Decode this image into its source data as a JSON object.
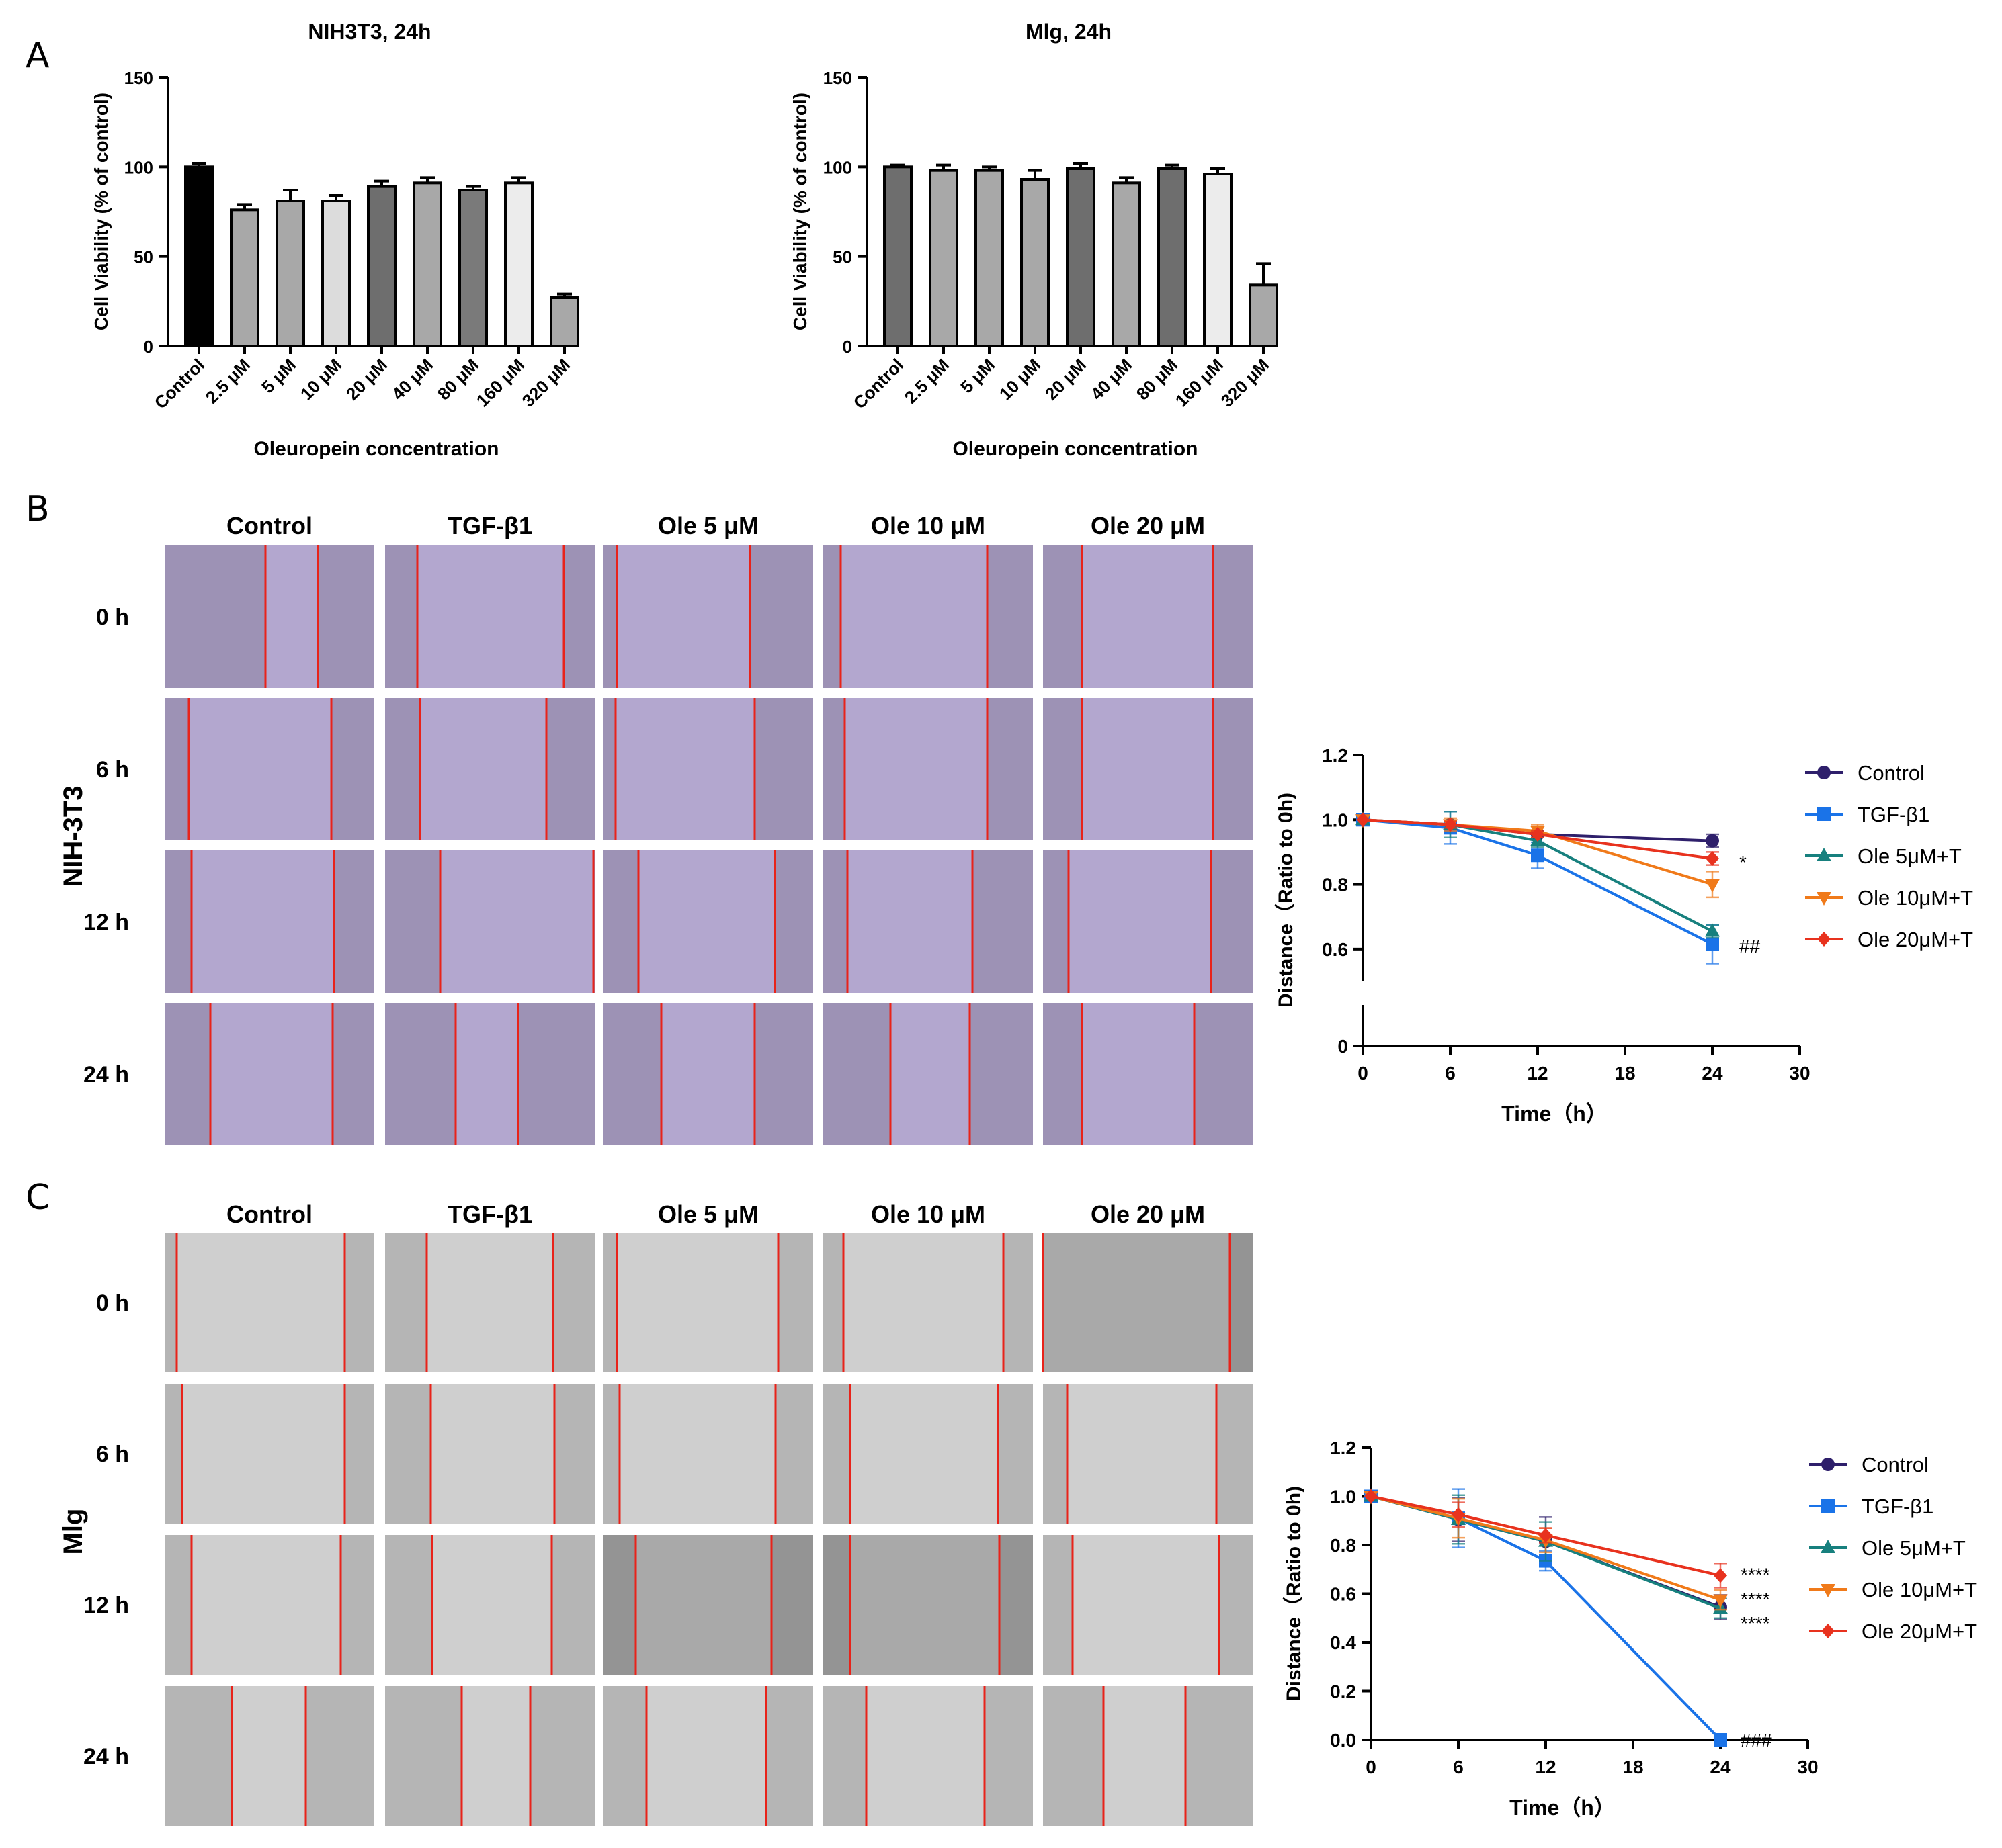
{
  "panel_letters": {
    "a": "A",
    "b": "B",
    "c": "C"
  },
  "panel_a": {
    "ylabel": "Cell Viability (% of control)",
    "xlabel": "Oleuropein concentration",
    "yticks": [
      "0",
      "50",
      "100",
      "150"
    ]
  },
  "panel_b": {
    "cell_line": "NIH-3T3",
    "columns": [
      "Control",
      "TGF-β1",
      "Ole 5 μM",
      "Ole 10 μM",
      "Ole 20 μM"
    ],
    "rows": [
      "0 h",
      "6 h",
      "12 h",
      "24 h"
    ]
  },
  "panel_c": {
    "cell_line": "Mlg",
    "columns": [
      "Control",
      "TGF-β1",
      "Ole 5 μM",
      "Ole 10 μM",
      "Ole 20 μM"
    ],
    "rows": [
      "0 h",
      "6 h",
      "12 h",
      "24 h"
    ]
  },
  "colors": {
    "control": "#2e1f6b",
    "tgf": "#1a73e8",
    "ole5": "#17807e",
    "ole10": "#f07a1a",
    "ole20": "#e8321e",
    "scratch_line": "#e8231a",
    "nih_tint": "#b3a7cf",
    "mlg_tint": "#cfcfcf"
  },
  "chart_data": [
    {
      "type": "bar",
      "title": "NIH3T3, 24h",
      "xlabel": "Oleuropein concentration",
      "ylabel": "Cell Viability (% of control)",
      "categories": [
        "Control",
        "2.5 μM",
        "5 μM",
        "10 μM",
        "20 μM",
        "40 μM",
        "80 μM",
        "160 μM",
        "320 μM"
      ],
      "values": [
        100,
        76,
        81,
        81,
        89,
        91,
        87,
        91,
        27
      ],
      "errors": [
        2,
        3,
        6,
        3,
        3,
        3,
        2,
        3,
        2
      ],
      "fills": [
        "#000000",
        "#a8a8a8",
        "#a8a8a8",
        "#dcdcdc",
        "#6e6e6e",
        "#a8a8a8",
        "#7a7a7a",
        "#ececec",
        "#a8a8a8"
      ],
      "ylim": [
        0,
        150
      ],
      "yticks": [
        0,
        50,
        100,
        150
      ]
    },
    {
      "type": "bar",
      "title": "Mlg, 24h",
      "xlabel": "Oleuropein concentration",
      "ylabel": "Cell Viability (% of control)",
      "categories": [
        "Control",
        "2.5 μM",
        "5 μM",
        "10 μM",
        "20 μM",
        "40 μM",
        "80 μM",
        "160 μM",
        "320 μM"
      ],
      "values": [
        100,
        98,
        98,
        93,
        99,
        91,
        99,
        96,
        34
      ],
      "errors": [
        1,
        3,
        2,
        5,
        3,
        3,
        2,
        3,
        12
      ],
      "fills": [
        "#6e6e6e",
        "#a8a8a8",
        "#a8a8a8",
        "#a8a8a8",
        "#6e6e6e",
        "#a8a8a8",
        "#6e6e6e",
        "#ececec",
        "#a8a8a8"
      ],
      "ylim": [
        0,
        150
      ],
      "yticks": [
        0,
        50,
        100,
        150
      ]
    },
    {
      "type": "line",
      "xlabel": "Time（h）",
      "ylabel": "Distance（Ratio to 0h)",
      "x": [
        0,
        6,
        12,
        24
      ],
      "xticks": [
        0,
        6,
        12,
        18,
        24,
        30
      ],
      "yticks": [
        0,
        0.6,
        0.8,
        1.0,
        1.2
      ],
      "ytick_labels": [
        "0",
        "0.6",
        "0.8",
        "1.0",
        "1.2"
      ],
      "axis_break": [
        0.05,
        0.5
      ],
      "series": [
        {
          "name": "Control",
          "marker": "circle",
          "values": [
            1.0,
            0.985,
            0.955,
            0.935
          ],
          "errors": [
            0,
            0.01,
            0.01,
            0.02
          ]
        },
        {
          "name": "TGF-β1",
          "marker": "square",
          "values": [
            1.0,
            0.975,
            0.89,
            0.615
          ],
          "errors": [
            0,
            0.05,
            0.04,
            0.06
          ]
        },
        {
          "name": "Ole 5μM+T",
          "marker": "triangle-up",
          "values": [
            1.0,
            0.985,
            0.935,
            0.655
          ],
          "errors": [
            0,
            0.04,
            0.02,
            0.02
          ]
        },
        {
          "name": "Ole 10μM+T",
          "marker": "triangle-down",
          "values": [
            1.0,
            0.985,
            0.965,
            0.8
          ],
          "errors": [
            0,
            0.02,
            0.02,
            0.04
          ]
        },
        {
          "name": "Ole 20μM+T",
          "marker": "diamond",
          "values": [
            1.0,
            0.985,
            0.955,
            0.88
          ],
          "errors": [
            0,
            0.01,
            0.01,
            0.02
          ]
        }
      ],
      "annotations": [
        {
          "text": "*",
          "x": 24,
          "y": 0.87
        },
        {
          "text": "##",
          "x": 24,
          "y": 0.61
        }
      ]
    },
    {
      "type": "line",
      "xlabel": "Time（h）",
      "ylabel": "Distance（Ratio to 0h)",
      "x": [
        0,
        6,
        12,
        24
      ],
      "xticks": [
        0,
        6,
        12,
        18,
        24,
        30
      ],
      "yticks": [
        0,
        0.2,
        0.4,
        0.6,
        0.8,
        1.0,
        1.2
      ],
      "ytick_labels": [
        "0.0",
        "0.2",
        "0.4",
        "0.6",
        "0.8",
        "1.0",
        "1.2"
      ],
      "series": [
        {
          "name": "Control",
          "marker": "circle",
          "values": [
            1.0,
            0.905,
            0.815,
            0.545
          ],
          "errors": [
            0,
            0.09,
            0.1,
            0.05
          ]
        },
        {
          "name": "TGF-β1",
          "marker": "square",
          "values": [
            1.0,
            0.91,
            0.735,
            0.0
          ],
          "errors": [
            0,
            0.12,
            0.04,
            0.01
          ]
        },
        {
          "name": "Ole 5μM+T",
          "marker": "triangle-up",
          "values": [
            1.0,
            0.905,
            0.815,
            0.54
          ],
          "errors": [
            0,
            0.1,
            0.08,
            0.04
          ]
        },
        {
          "name": "Ole 10μM+T",
          "marker": "triangle-down",
          "values": [
            1.0,
            0.91,
            0.82,
            0.575
          ],
          "errors": [
            0,
            0.08,
            0.05,
            0.04
          ]
        },
        {
          "name": "Ole 20μM+T",
          "marker": "diamond",
          "values": [
            1.0,
            0.925,
            0.84,
            0.675
          ],
          "errors": [
            0,
            0.05,
            0.03,
            0.05
          ]
        }
      ],
      "annotations": [
        {
          "text": "****",
          "x": 24,
          "y": 0.68
        },
        {
          "text": "****",
          "x": 24,
          "y": 0.58
        },
        {
          "text": "****",
          "x": 24,
          "y": 0.48
        },
        {
          "text": "###",
          "x": 24,
          "y": 0.0
        }
      ]
    }
  ]
}
